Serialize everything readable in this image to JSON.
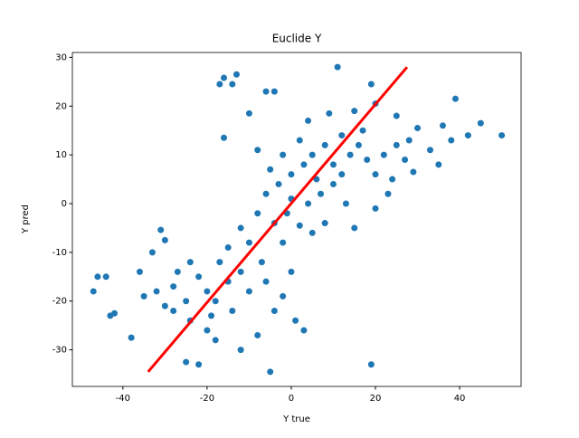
{
  "chart_data": {
    "type": "scatter",
    "title": "Euclide Y",
    "x_label": "Y true",
    "y_label": "Y pred",
    "xlim": [
      -52,
      54.6
    ],
    "ylim": [
      -37.5,
      31
    ],
    "xticks": [
      -40,
      -20,
      0,
      20,
      40
    ],
    "yticks": [
      -30,
      -20,
      -10,
      0,
      10,
      20,
      30
    ],
    "series": [
      {
        "style": "marker",
        "color": "#1f77b4",
        "x": [
          -31,
          -17,
          -16,
          -14,
          -13,
          -6,
          -4,
          11,
          19,
          -5,
          19,
          -22,
          -25,
          50,
          45,
          42,
          39,
          38,
          36,
          -47,
          -46,
          -44,
          -43,
          -42,
          -38,
          -35,
          -36,
          -33,
          -30,
          -16,
          -10,
          -8,
          4,
          9,
          15,
          20,
          25,
          30,
          33,
          35,
          29,
          23,
          20,
          15,
          13,
          8,
          5,
          2,
          -2,
          0,
          -2,
          -4,
          1,
          3,
          -8,
          -12,
          -18,
          -20,
          -24,
          -28,
          5,
          8,
          10,
          12,
          6,
          3,
          0,
          -2,
          2,
          14,
          16,
          18,
          20,
          22,
          25,
          27,
          10,
          7,
          4,
          0,
          -3,
          -5,
          -6,
          -8,
          -4,
          -1,
          12,
          17,
          24,
          28,
          -20,
          -22,
          -18,
          -15,
          -25,
          -28,
          -30,
          -24,
          -17,
          -12,
          -10,
          -14,
          -19,
          -27,
          -32,
          -10,
          -12,
          -15,
          -7,
          -6
        ],
        "values": [
          -5.4,
          24.5,
          25.8,
          24.5,
          26.5,
          23,
          23,
          28,
          24.5,
          -34.5,
          -33,
          -33,
          -32.5,
          14,
          16.5,
          14,
          21.5,
          13,
          16,
          -18,
          -15,
          -15,
          -23,
          -22.5,
          -27.5,
          -19,
          -14,
          -10,
          -7.5,
          13.5,
          18.5,
          11,
          17,
          18.5,
          19,
          20.5,
          18,
          15.5,
          11,
          8,
          6.5,
          2,
          -1,
          -5,
          0,
          -4,
          -6,
          -4.5,
          -8,
          -14,
          -19,
          -22,
          -24,
          -26,
          -27,
          -30,
          -28,
          -26,
          -24,
          -22,
          10,
          12,
          8,
          14,
          5,
          8,
          6,
          10,
          13,
          10,
          12,
          9,
          6,
          10,
          12,
          9,
          4,
          2,
          0,
          1,
          4,
          7,
          2,
          -2,
          -4,
          -2,
          6,
          15,
          5,
          13,
          -18,
          -15,
          -20,
          -16,
          -20,
          -17,
          -21,
          -12,
          -12,
          -14,
          -18,
          -22,
          -23,
          -14,
          -18,
          -8,
          -5,
          -9,
          -12,
          -16
        ]
      },
      {
        "style": "line",
        "color": "red",
        "x": [
          -34,
          27.5
        ],
        "values": [
          -34.5,
          28
        ]
      }
    ]
  }
}
